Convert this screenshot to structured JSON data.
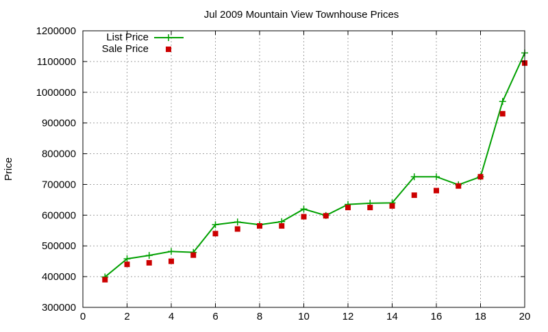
{
  "chart_data": {
    "type": "line",
    "title": "Jul 2009 Mountain View Townhouse Prices",
    "xlabel": "",
    "ylabel": "Price",
    "xlim": [
      0,
      20
    ],
    "ylim": [
      300000,
      1200000
    ],
    "x_ticks": [
      0,
      2,
      4,
      6,
      8,
      10,
      12,
      14,
      16,
      18,
      20
    ],
    "y_ticks": [
      300000,
      400000,
      500000,
      600000,
      700000,
      800000,
      900000,
      1000000,
      1100000,
      1200000
    ],
    "x_tick_labels": [
      "0",
      "2",
      "4",
      "6",
      "8",
      "10",
      "12",
      "14",
      "16",
      "18",
      "20"
    ],
    "y_tick_labels": [
      "300000",
      "400000",
      "500000",
      "600000",
      "700000",
      "800000",
      "900000",
      "1000000",
      "1100000",
      "1200000"
    ],
    "grid": true,
    "legend_position": "top-left",
    "x": [
      1,
      2,
      3,
      4,
      5,
      6,
      7,
      8,
      9,
      10,
      11,
      12,
      13,
      14,
      15,
      16,
      17,
      18,
      19,
      20
    ],
    "series": [
      {
        "name": "List Price",
        "style": "linespoints",
        "marker": "plus",
        "color": "#00a000",
        "values": [
          399000,
          458000,
          469000,
          482000,
          479000,
          569000,
          578000,
          569000,
          579000,
          620000,
          599000,
          635000,
          639000,
          640000,
          725000,
          725000,
          699000,
          725000,
          970000,
          1128000
        ]
      },
      {
        "name": "Sale Price",
        "style": "points",
        "marker": "square",
        "color": "#cc0000",
        "values": [
          390000,
          440000,
          445000,
          450000,
          470000,
          540000,
          555000,
          565000,
          565000,
          595000,
          598000,
          625000,
          625000,
          630000,
          665000,
          680000,
          695000,
          725000,
          930000,
          1095000
        ]
      }
    ]
  }
}
